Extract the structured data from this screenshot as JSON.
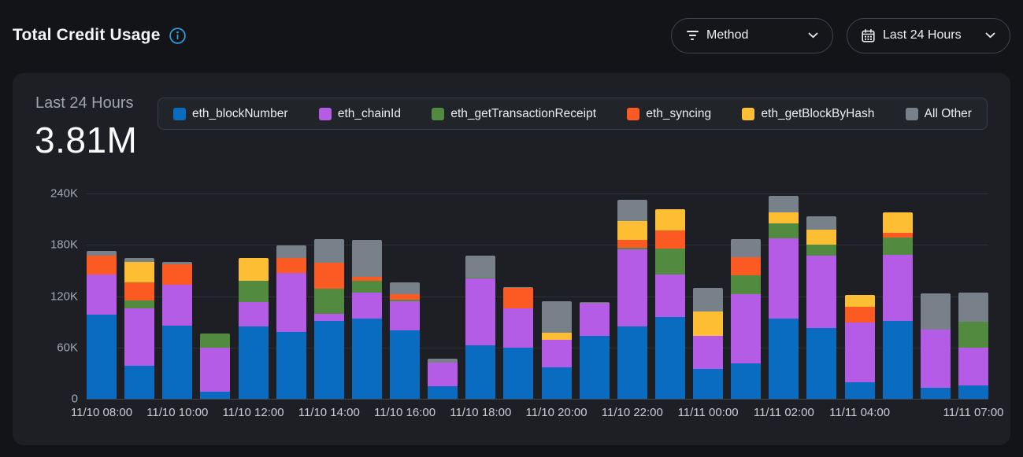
{
  "header": {
    "title": "Total Credit Usage",
    "filters": [
      {
        "label": "Method",
        "icon": "filter-icon"
      },
      {
        "label": "Last 24 Hours",
        "icon": "calendar-icon"
      }
    ]
  },
  "card": {
    "period_label": "Last 24 Hours",
    "total_value": "3.81M"
  },
  "colors": {
    "info_accent": "#2D9FE0",
    "page_bg": "#131418",
    "card_bg": "#1D1F24"
  },
  "chart_data": {
    "type": "bar",
    "stacked": true,
    "title": "Total Credit Usage",
    "grid": true,
    "legend_position": "top",
    "ylim": [
      0,
      240000
    ],
    "yticks": [
      {
        "label": "0",
        "value": 0
      },
      {
        "label": "60K",
        "value": 60000
      },
      {
        "label": "120K",
        "value": 120000
      },
      {
        "label": "180K",
        "value": 180000
      },
      {
        "label": "240K",
        "value": 240000
      }
    ],
    "x_categories": [
      "11/10 08:00",
      "11/10 09:00",
      "11/10 10:00",
      "11/10 11:00",
      "11/10 12:00",
      "11/10 13:00",
      "11/10 14:00",
      "11/10 15:00",
      "11/10 16:00",
      "11/10 17:00",
      "11/10 18:00",
      "11/10 19:00",
      "11/10 20:00",
      "11/10 21:00",
      "11/10 22:00",
      "11/10 23:00",
      "11/11 00:00",
      "11/11 01:00",
      "11/11 02:00",
      "11/11 03:00",
      "11/11 04:00",
      "11/11 05:00",
      "11/11 06:00",
      "11/11 07:00"
    ],
    "xtick_indices": [
      0,
      2,
      4,
      6,
      8,
      10,
      12,
      14,
      16,
      18,
      20,
      23
    ],
    "xtick_labels": [
      "11/10 08:00",
      "11/10 10:00",
      "11/10 12:00",
      "11/10 14:00",
      "11/10 16:00",
      "11/10 18:00",
      "11/10 20:00",
      "11/10 22:00",
      "11/11 00:00",
      "11/11 02:00",
      "11/11 04:00",
      "11/11 07:00"
    ],
    "series": [
      {
        "name": "eth_blockNumber",
        "color": "#0A6CC0",
        "values": [
          98000,
          39000,
          86000,
          8000,
          85000,
          78000,
          91000,
          94000,
          80000,
          15000,
          63000,
          60000,
          37000,
          74000,
          85000,
          96000,
          35000,
          41000,
          94000,
          83000,
          19000,
          91000,
          13000,
          16000
        ]
      },
      {
        "name": "eth_chainId",
        "color": "#B55CE6",
        "values": [
          47000,
          67000,
          47000,
          52000,
          28000,
          69000,
          8000,
          30000,
          34000,
          27000,
          78000,
          46000,
          32000,
          38000,
          90000,
          49000,
          39000,
          81000,
          94000,
          84000,
          70000,
          77000,
          68000,
          44000
        ]
      },
      {
        "name": "eth_getTransactionReceipt",
        "color": "#528B3F",
        "values": [
          0,
          9000,
          0,
          16000,
          25000,
          0,
          30000,
          14000,
          2000,
          0,
          1000,
          0,
          0,
          1000,
          2000,
          31000,
          0,
          22000,
          17000,
          13000,
          0,
          21000,
          0,
          30000
        ]
      },
      {
        "name": "eth_syncing",
        "color": "#FB5A23",
        "values": [
          22000,
          21000,
          24000,
          0,
          0,
          18000,
          30000,
          5000,
          6000,
          0,
          0,
          24000,
          0,
          0,
          9000,
          21000,
          0,
          22000,
          0,
          0,
          19000,
          5000,
          0,
          0
        ]
      },
      {
        "name": "eth_getBlockByHash",
        "color": "#FEBE33",
        "values": [
          0,
          24000,
          0,
          0,
          27000,
          0,
          0,
          0,
          0,
          0,
          0,
          0,
          8000,
          0,
          22000,
          25000,
          28000,
          0,
          13000,
          18000,
          13000,
          24000,
          0,
          0
        ]
      },
      {
        "name": "All Other",
        "color": "#788089",
        "values": [
          6000,
          5000,
          3000,
          0,
          0,
          14000,
          28000,
          43000,
          14000,
          5000,
          25000,
          1000,
          37000,
          0,
          25000,
          0,
          28000,
          21000,
          19000,
          15000,
          0,
          0,
          42000,
          34000
        ]
      }
    ]
  }
}
